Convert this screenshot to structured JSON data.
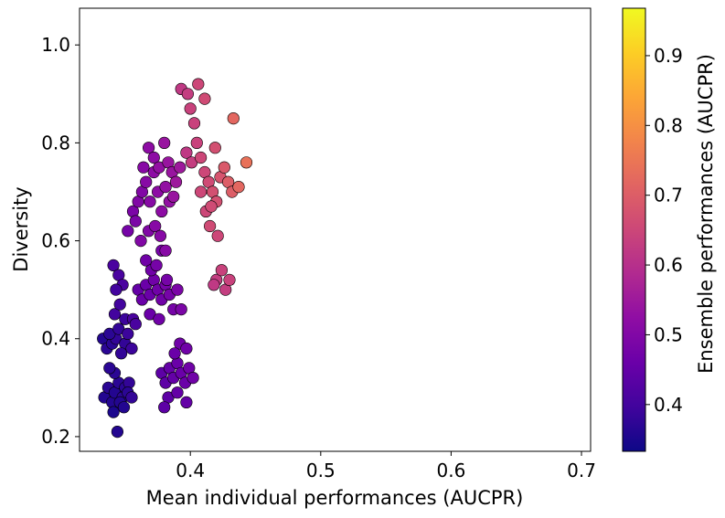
{
  "chart_data": {
    "type": "scatter",
    "xlabel": "Mean individual performances (AUCPR)",
    "ylabel": "Diversity",
    "colorbar_label": "Ensemble performances (AUCPR)",
    "xlim": [
      0.315,
      0.707
    ],
    "ylim": [
      0.17,
      1.075
    ],
    "clim": [
      0.333,
      0.968
    ],
    "xticks": [
      0.4,
      0.5,
      0.6,
      0.7
    ],
    "xtick_labels": [
      "0.4",
      "0.5",
      "0.6",
      "0.7"
    ],
    "yticks": [
      0.2,
      0.4,
      0.6,
      0.8,
      1.0
    ],
    "ytick_labels": [
      "0.2",
      "0.4",
      "0.6",
      "0.8",
      "1.0"
    ],
    "cticks": [
      0.4,
      0.5,
      0.6,
      0.7,
      0.8,
      0.9
    ],
    "ctick_labels": [
      "0.4",
      "0.5",
      "0.6",
      "0.7",
      "0.8",
      "0.9"
    ],
    "colormap": "plasma",
    "grid": false,
    "points": [
      [
        0.333,
        0.4,
        0.36
      ],
      [
        0.336,
        0.38,
        0.37
      ],
      [
        0.34,
        0.39,
        0.37
      ],
      [
        0.343,
        0.4,
        0.38
      ],
      [
        0.338,
        0.41,
        0.37
      ],
      [
        0.345,
        0.42,
        0.38
      ],
      [
        0.35,
        0.39,
        0.38
      ],
      [
        0.352,
        0.41,
        0.39
      ],
      [
        0.347,
        0.37,
        0.38
      ],
      [
        0.355,
        0.38,
        0.39
      ],
      [
        0.342,
        0.45,
        0.4
      ],
      [
        0.346,
        0.47,
        0.4
      ],
      [
        0.35,
        0.44,
        0.39
      ],
      [
        0.341,
        0.55,
        0.41
      ],
      [
        0.345,
        0.53,
        0.41
      ],
      [
        0.348,
        0.51,
        0.41
      ],
      [
        0.343,
        0.5,
        0.4
      ],
      [
        0.356,
        0.44,
        0.41
      ],
      [
        0.358,
        0.43,
        0.41
      ],
      [
        0.344,
        0.21,
        0.36
      ],
      [
        0.334,
        0.28,
        0.36
      ],
      [
        0.337,
        0.3,
        0.37
      ],
      [
        0.34,
        0.27,
        0.36
      ],
      [
        0.342,
        0.29,
        0.36
      ],
      [
        0.345,
        0.31,
        0.37
      ],
      [
        0.348,
        0.28,
        0.37
      ],
      [
        0.35,
        0.3,
        0.37
      ],
      [
        0.353,
        0.31,
        0.38
      ],
      [
        0.342,
        0.33,
        0.37
      ],
      [
        0.341,
        0.25,
        0.35
      ],
      [
        0.346,
        0.27,
        0.36
      ],
      [
        0.349,
        0.26,
        0.36
      ],
      [
        0.352,
        0.29,
        0.37
      ],
      [
        0.355,
        0.28,
        0.38
      ],
      [
        0.338,
        0.34,
        0.37
      ],
      [
        0.36,
        0.5,
        0.45
      ],
      [
        0.363,
        0.48,
        0.46
      ],
      [
        0.366,
        0.51,
        0.46
      ],
      [
        0.369,
        0.49,
        0.46
      ],
      [
        0.372,
        0.52,
        0.47
      ],
      [
        0.375,
        0.5,
        0.47
      ],
      [
        0.378,
        0.48,
        0.47
      ],
      [
        0.381,
        0.51,
        0.48
      ],
      [
        0.384,
        0.49,
        0.48
      ],
      [
        0.387,
        0.46,
        0.48
      ],
      [
        0.39,
        0.5,
        0.49
      ],
      [
        0.366,
        0.56,
        0.47
      ],
      [
        0.37,
        0.54,
        0.47
      ],
      [
        0.374,
        0.55,
        0.48
      ],
      [
        0.378,
        0.58,
        0.48
      ],
      [
        0.382,
        0.52,
        0.48
      ],
      [
        0.393,
        0.46,
        0.49
      ],
      [
        0.369,
        0.45,
        0.46
      ],
      [
        0.376,
        0.44,
        0.47
      ],
      [
        0.378,
        0.33,
        0.44
      ],
      [
        0.381,
        0.31,
        0.44
      ],
      [
        0.384,
        0.34,
        0.45
      ],
      [
        0.387,
        0.32,
        0.45
      ],
      [
        0.39,
        0.35,
        0.46
      ],
      [
        0.393,
        0.33,
        0.46
      ],
      [
        0.396,
        0.31,
        0.46
      ],
      [
        0.399,
        0.34,
        0.47
      ],
      [
        0.402,
        0.32,
        0.47
      ],
      [
        0.383,
        0.28,
        0.44
      ],
      [
        0.39,
        0.29,
        0.45
      ],
      [
        0.397,
        0.27,
        0.45
      ],
      [
        0.38,
        0.26,
        0.44
      ],
      [
        0.392,
        0.39,
        0.47
      ],
      [
        0.397,
        0.38,
        0.47
      ],
      [
        0.388,
        0.37,
        0.46
      ],
      [
        0.352,
        0.62,
        0.48
      ],
      [
        0.356,
        0.66,
        0.49
      ],
      [
        0.36,
        0.68,
        0.5
      ],
      [
        0.363,
        0.7,
        0.5
      ],
      [
        0.366,
        0.72,
        0.51
      ],
      [
        0.369,
        0.68,
        0.51
      ],
      [
        0.372,
        0.74,
        0.52
      ],
      [
        0.375,
        0.7,
        0.52
      ],
      [
        0.378,
        0.66,
        0.52
      ],
      [
        0.381,
        0.71,
        0.53
      ],
      [
        0.384,
        0.68,
        0.53
      ],
      [
        0.387,
        0.69,
        0.54
      ],
      [
        0.358,
        0.64,
        0.49
      ],
      [
        0.364,
        0.75,
        0.51
      ],
      [
        0.368,
        0.79,
        0.52
      ],
      [
        0.372,
        0.77,
        0.52
      ],
      [
        0.376,
        0.75,
        0.53
      ],
      [
        0.38,
        0.8,
        0.54
      ],
      [
        0.383,
        0.76,
        0.54
      ],
      [
        0.386,
        0.74,
        0.54
      ],
      [
        0.389,
        0.72,
        0.55
      ],
      [
        0.392,
        0.75,
        0.55
      ],
      [
        0.362,
        0.6,
        0.5
      ],
      [
        0.368,
        0.62,
        0.5
      ],
      [
        0.373,
        0.63,
        0.51
      ],
      [
        0.377,
        0.61,
        0.51
      ],
      [
        0.381,
        0.58,
        0.51
      ],
      [
        0.393,
        0.91,
        0.62
      ],
      [
        0.398,
        0.9,
        0.63
      ],
      [
        0.4,
        0.87,
        0.64
      ],
      [
        0.403,
        0.84,
        0.64
      ],
      [
        0.397,
        0.78,
        0.62
      ],
      [
        0.401,
        0.76,
        0.63
      ],
      [
        0.405,
        0.8,
        0.64
      ],
      [
        0.408,
        0.77,
        0.65
      ],
      [
        0.411,
        0.74,
        0.65
      ],
      [
        0.414,
        0.72,
        0.66
      ],
      [
        0.417,
        0.7,
        0.67
      ],
      [
        0.42,
        0.68,
        0.67
      ],
      [
        0.423,
        0.73,
        0.68
      ],
      [
        0.406,
        0.92,
        0.65
      ],
      [
        0.411,
        0.89,
        0.66
      ],
      [
        0.419,
        0.79,
        0.67
      ],
      [
        0.426,
        0.75,
        0.69
      ],
      [
        0.429,
        0.72,
        0.7
      ],
      [
        0.432,
        0.7,
        0.7
      ],
      [
        0.433,
        0.85,
        0.72
      ],
      [
        0.412,
        0.66,
        0.65
      ],
      [
        0.416,
        0.67,
        0.66
      ],
      [
        0.42,
        0.52,
        0.63
      ],
      [
        0.424,
        0.54,
        0.64
      ],
      [
        0.427,
        0.5,
        0.63
      ],
      [
        0.43,
        0.52,
        0.64
      ],
      [
        0.418,
        0.51,
        0.62
      ],
      [
        0.421,
        0.61,
        0.65
      ],
      [
        0.443,
        0.76,
        0.74
      ],
      [
        0.437,
        0.71,
        0.72
      ],
      [
        0.408,
        0.7,
        0.65
      ],
      [
        0.415,
        0.63,
        0.66
      ]
    ],
    "points_columns": [
      "x",
      "y",
      "ensemble"
    ]
  }
}
